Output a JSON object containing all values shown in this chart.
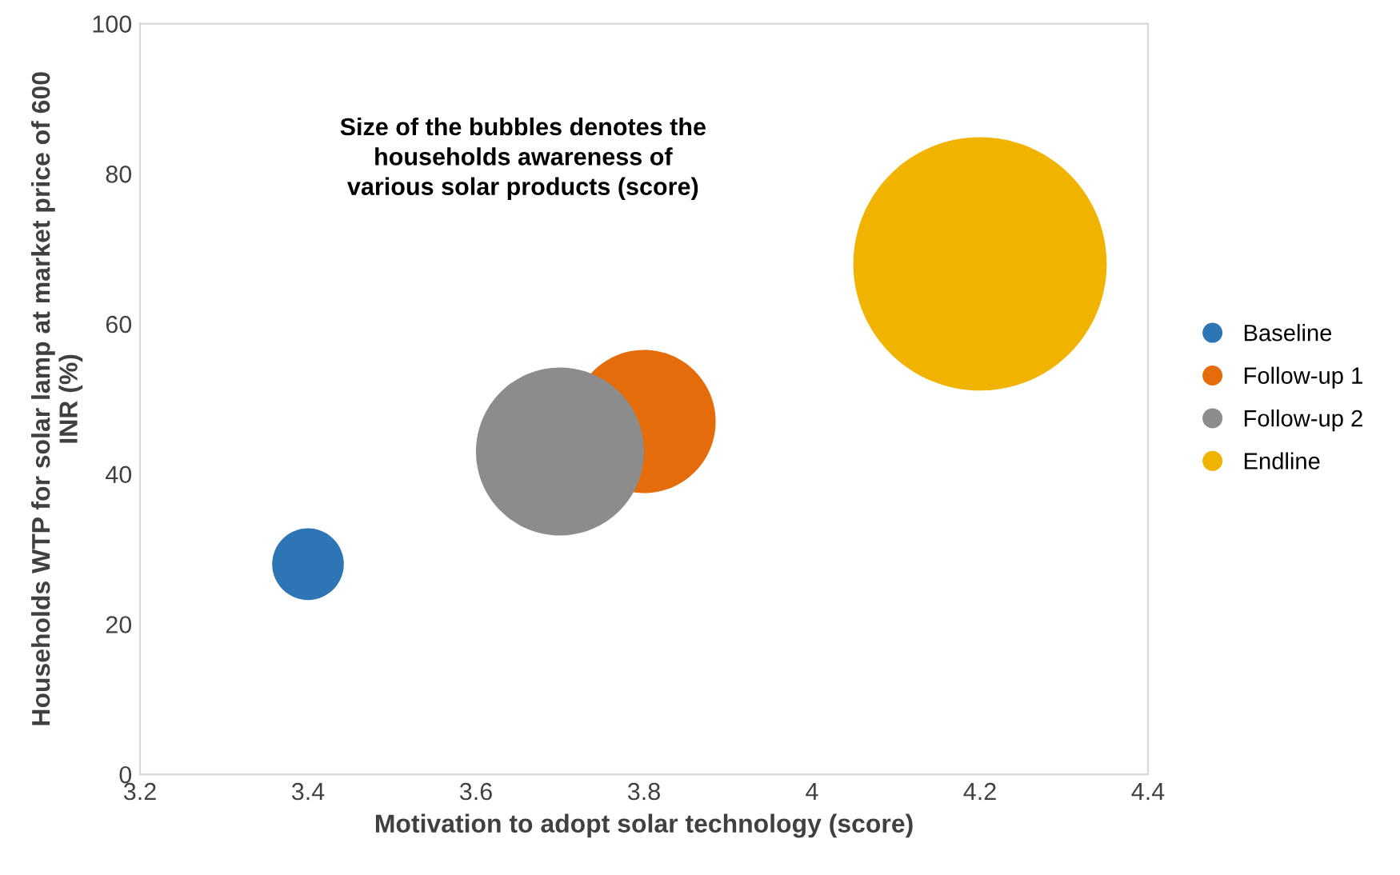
{
  "chart_data": {
    "type": "bubble",
    "xlabel": "Motivation to adopt solar technology (score)",
    "ylabel": "Households WTP for solar lamp at market price of 600\nINR (%)",
    "annotations": [
      "Size of the bubbles denotes the\nhouseholds awareness of\nvarious solar products (score)"
    ],
    "xlim": [
      3.2,
      4.4
    ],
    "xticks": [
      3.2,
      3.4,
      3.6,
      3.8,
      {
        "value": 4.0,
        "label": "4"
      },
      4.2,
      4.4
    ],
    "ylim": [
      0,
      100
    ],
    "yticks": [
      0,
      20,
      40,
      60,
      80,
      100
    ],
    "grid": false,
    "legend": "right",
    "series": [
      {
        "name": "Baseline",
        "color": "#2e75b6",
        "x": [
          3.4
        ],
        "values": [
          28
        ],
        "sizes": [
          0.08
        ]
      },
      {
        "name": "Follow-up 1",
        "color": "#e46c0a",
        "x": [
          3.8
        ],
        "values": [
          47
        ],
        "sizes": [
          0.32
        ]
      },
      {
        "name": "Follow-up 2",
        "color": "#8c8c8c",
        "x": [
          3.7
        ],
        "values": [
          43
        ],
        "sizes": [
          0.44
        ]
      },
      {
        "name": "Endline",
        "color": "#f0b400",
        "x": [
          4.2
        ],
        "values": [
          68
        ],
        "sizes": [
          1.0
        ]
      }
    ]
  }
}
